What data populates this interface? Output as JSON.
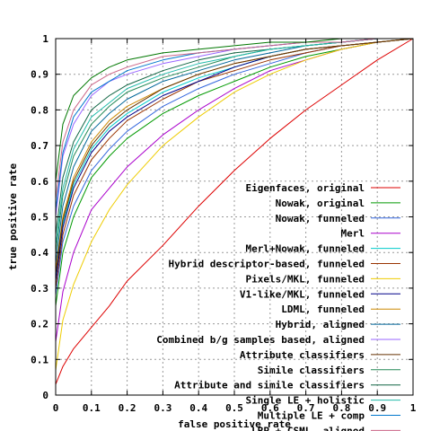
{
  "chart_data": {
    "type": "line",
    "title": "",
    "xlabel": "false positive rate",
    "ylabel": "true positive rate",
    "xlim": [
      0,
      1
    ],
    "ylim": [
      0,
      1
    ],
    "xticks": [
      "0",
      "0.1",
      "0.2",
      "0.3",
      "0.4",
      "0.5",
      "0.6",
      "0.7",
      "0.8",
      "0.9",
      "1"
    ],
    "yticks": [
      "0",
      "0.1",
      "0.2",
      "0.3",
      "0.4",
      "0.5",
      "0.6",
      "0.7",
      "0.8",
      "0.9",
      "1"
    ],
    "grid": true,
    "legend_position": "bottom-right",
    "x": [
      0,
      0.02,
      0.05,
      0.1,
      0.15,
      0.2,
      0.3,
      0.4,
      0.5,
      0.6,
      0.7,
      0.8,
      0.9,
      1.0
    ],
    "series": [
      {
        "name": "Eigenfaces, original",
        "color": "#dd0000",
        "values": [
          0.03,
          0.08,
          0.13,
          0.19,
          0.25,
          0.32,
          0.42,
          0.53,
          0.63,
          0.72,
          0.8,
          0.87,
          0.94,
          1.0
        ]
      },
      {
        "name": "Nowak, original",
        "color": "#009900",
        "values": [
          0.25,
          0.4,
          0.5,
          0.61,
          0.67,
          0.72,
          0.79,
          0.84,
          0.88,
          0.92,
          0.95,
          0.97,
          0.99,
          1.0
        ]
      },
      {
        "name": "Nowak, funneled",
        "color": "#3366dd",
        "values": [
          0.28,
          0.43,
          0.53,
          0.63,
          0.69,
          0.74,
          0.81,
          0.86,
          0.9,
          0.93,
          0.96,
          0.98,
          0.99,
          1.0
        ]
      },
      {
        "name": "Merl",
        "color": "#aa00cc",
        "values": [
          0.15,
          0.29,
          0.4,
          0.52,
          0.58,
          0.64,
          0.73,
          0.8,
          0.86,
          0.91,
          0.94,
          0.97,
          0.99,
          1.0
        ]
      },
      {
        "name": "Merl+Nowak, funneled",
        "color": "#00cccc",
        "values": [
          0.33,
          0.48,
          0.59,
          0.69,
          0.75,
          0.79,
          0.85,
          0.89,
          0.92,
          0.95,
          0.97,
          0.98,
          0.99,
          1.0
        ]
      },
      {
        "name": "Hybrid descriptor-based, funneled",
        "color": "#993300",
        "values": [
          0.3,
          0.45,
          0.56,
          0.66,
          0.72,
          0.77,
          0.83,
          0.88,
          0.91,
          0.94,
          0.96,
          0.98,
          0.99,
          1.0
        ]
      },
      {
        "name": "Pixels/MKL, funneled",
        "color": "#eecc00",
        "values": [
          0.07,
          0.21,
          0.31,
          0.43,
          0.52,
          0.59,
          0.7,
          0.78,
          0.85,
          0.9,
          0.94,
          0.97,
          0.99,
          1.0
        ]
      },
      {
        "name": "V1-like/MKL, funneled",
        "color": "#000088",
        "values": [
          0.32,
          0.47,
          0.58,
          0.68,
          0.74,
          0.78,
          0.84,
          0.88,
          0.92,
          0.95,
          0.97,
          0.98,
          0.99,
          1.0
        ]
      },
      {
        "name": "LDML, funneled",
        "color": "#cc8800",
        "values": [
          0.35,
          0.5,
          0.61,
          0.71,
          0.77,
          0.81,
          0.86,
          0.9,
          0.93,
          0.95,
          0.97,
          0.98,
          0.99,
          1.0
        ]
      },
      {
        "name": "Hybrid, aligned",
        "color": "#006699",
        "values": [
          0.37,
          0.53,
          0.64,
          0.74,
          0.79,
          0.83,
          0.88,
          0.91,
          0.94,
          0.96,
          0.98,
          0.99,
          1.0,
          1.0
        ]
      },
      {
        "name": "Combined b/g samples based, aligned",
        "color": "#9966ff",
        "values": [
          0.5,
          0.67,
          0.76,
          0.84,
          0.88,
          0.9,
          0.93,
          0.95,
          0.97,
          0.98,
          0.99,
          0.99,
          1.0,
          1.0
        ]
      },
      {
        "name": "Attribute classifiers",
        "color": "#663300",
        "values": [
          0.34,
          0.49,
          0.6,
          0.7,
          0.76,
          0.8,
          0.86,
          0.9,
          0.93,
          0.95,
          0.97,
          0.98,
          0.99,
          1.0
        ]
      },
      {
        "name": "Simile classifiers",
        "color": "#228855",
        "values": [
          0.4,
          0.56,
          0.67,
          0.76,
          0.81,
          0.85,
          0.89,
          0.92,
          0.95,
          0.97,
          0.98,
          0.99,
          1.0,
          1.0
        ]
      },
      {
        "name": "Attribute and simile classifiers",
        "color": "#116644",
        "values": [
          0.45,
          0.61,
          0.71,
          0.8,
          0.84,
          0.87,
          0.91,
          0.94,
          0.96,
          0.97,
          0.98,
          0.99,
          1.0,
          1.0
        ]
      },
      {
        "name": "Single LE + holistic",
        "color": "#22bbaa",
        "values": [
          0.42,
          0.58,
          0.69,
          0.78,
          0.82,
          0.86,
          0.9,
          0.93,
          0.95,
          0.97,
          0.98,
          0.99,
          1.0,
          1.0
        ]
      },
      {
        "name": "Multiple LE + comp",
        "color": "#0077cc",
        "values": [
          0.52,
          0.68,
          0.78,
          0.85,
          0.88,
          0.91,
          0.94,
          0.96,
          0.97,
          0.98,
          0.99,
          0.99,
          1.0,
          1.0
        ]
      },
      {
        "name": "LBP + CSML, aligned",
        "color": "#cc6688",
        "values": [
          0.55,
          0.71,
          0.8,
          0.87,
          0.9,
          0.92,
          0.95,
          0.96,
          0.97,
          0.98,
          0.99,
          0.99,
          1.0,
          1.0
        ]
      },
      {
        "name": "CSML + SVM, aligned",
        "color": "#007700",
        "values": [
          0.6,
          0.76,
          0.84,
          0.89,
          0.92,
          0.94,
          0.96,
          0.97,
          0.98,
          0.99,
          0.99,
          1.0,
          1.0,
          1.0
        ]
      }
    ]
  }
}
